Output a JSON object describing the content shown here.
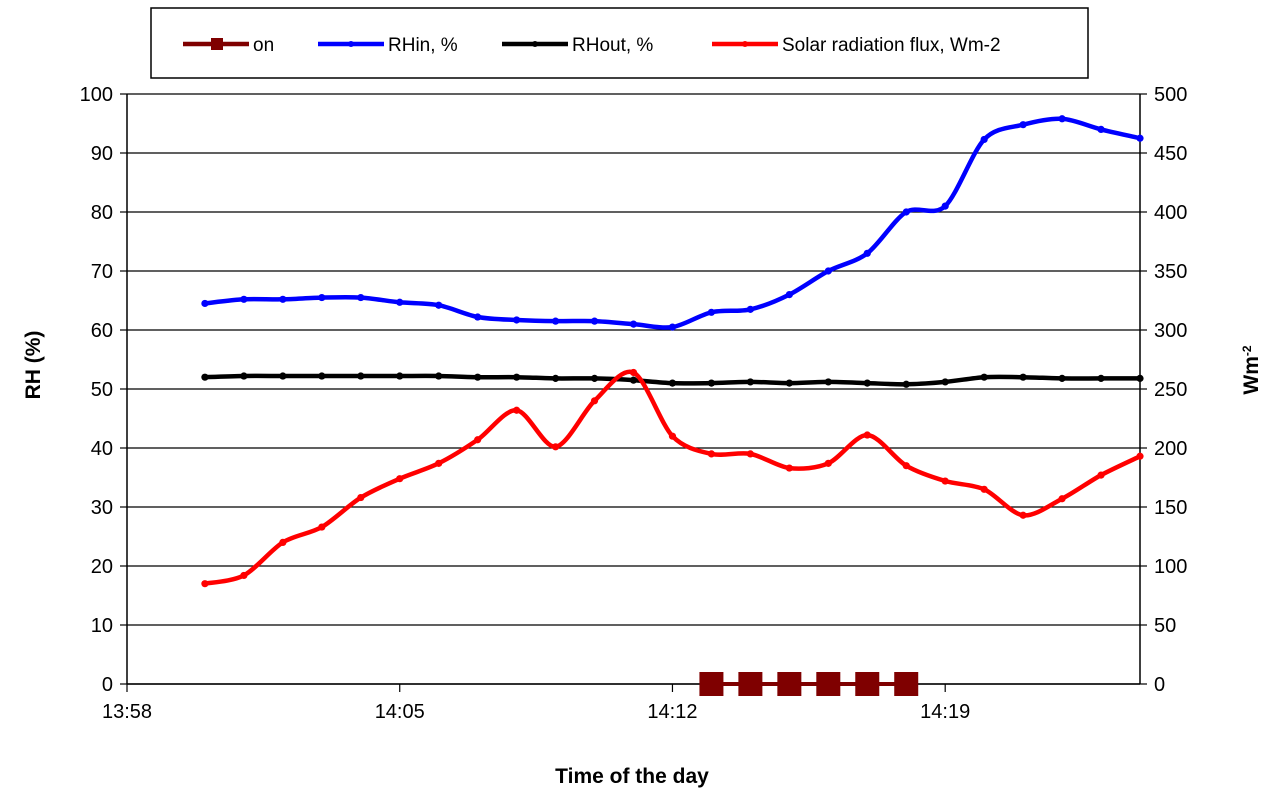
{
  "chart_data": {
    "type": "line",
    "x_axis": {
      "label": "Time of the day",
      "range": [
        "13:58",
        "14:24"
      ],
      "ticks": [
        "13:58",
        "14:05",
        "14:12",
        "14:19"
      ]
    },
    "y_left": {
      "label": "RH (%)",
      "range": [
        0,
        100
      ],
      "ticks": [
        0,
        10,
        20,
        30,
        40,
        50,
        60,
        70,
        80,
        90,
        100
      ]
    },
    "y_right": {
      "label_base": "Wm",
      "label_sup": "-2",
      "range": [
        0,
        500
      ],
      "ticks": [
        0,
        50,
        100,
        150,
        200,
        250,
        300,
        350,
        400,
        450,
        500
      ]
    },
    "grid": "horizontal",
    "legend_position": "top",
    "x": [
      "13:60",
      "14:01",
      "14:02",
      "14:03",
      "14:04",
      "14:05",
      "14:06",
      "14:07",
      "14:08",
      "14:09",
      "14:10",
      "14:11",
      "14:12",
      "14:13",
      "14:14",
      "14:15",
      "14:16",
      "14:17",
      "14:18",
      "14:19",
      "14:20",
      "14:21",
      "14:22",
      "14:23",
      "14:24"
    ],
    "series": [
      {
        "name": "on",
        "axis": "left",
        "color": "#7f0000",
        "marker": "square",
        "x": [
          "14:13",
          "14:14",
          "14:15",
          "14:16",
          "14:17",
          "14:18"
        ],
        "values": [
          0,
          0,
          0,
          0,
          0,
          0
        ]
      },
      {
        "name": "RHin, %",
        "axis": "left",
        "color": "#0000ff",
        "marker": "dot",
        "values": [
          64.5,
          65.2,
          65.2,
          65.5,
          65.5,
          64.7,
          64.2,
          62.2,
          61.7,
          61.5,
          61.5,
          61.0,
          60.5,
          63.0,
          63.5,
          66.0,
          70.0,
          73.0,
          80.0,
          81.0,
          92.3,
          94.8,
          95.8,
          94.0,
          92.5
        ]
      },
      {
        "name": "RHout, %",
        "axis": "left",
        "color": "#000000",
        "marker": "dot",
        "values": [
          52.0,
          52.2,
          52.2,
          52.2,
          52.2,
          52.2,
          52.2,
          52.0,
          52.0,
          51.8,
          51.8,
          51.5,
          51.0,
          51.0,
          51.2,
          51.0,
          51.2,
          51.0,
          50.8,
          51.2,
          52.0,
          52.0,
          51.8,
          51.8,
          51.8
        ]
      },
      {
        "name": "Solar radiation  flux, Wm-2",
        "axis": "right",
        "color": "#ff0000",
        "marker": "dot",
        "values": [
          85,
          92,
          120,
          133,
          158,
          174,
          187,
          207,
          232,
          201,
          240,
          264,
          210,
          195,
          195,
          183,
          187,
          211,
          185,
          172,
          165,
          143,
          157,
          177,
          193
        ]
      }
    ]
  }
}
